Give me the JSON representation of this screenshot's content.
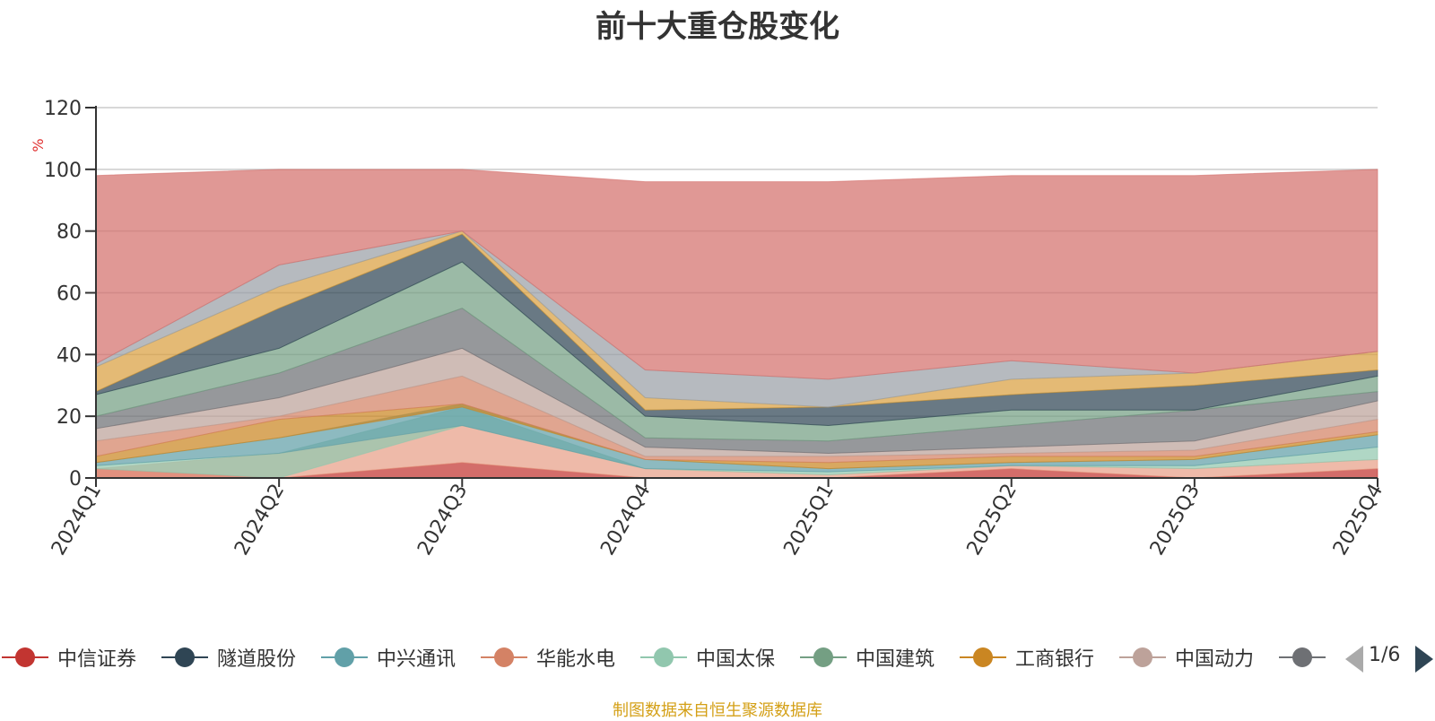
{
  "chart_data": {
    "type": "area",
    "title": "前十大重仓股变化",
    "ylabel": "%",
    "ylim": [
      0,
      120
    ],
    "yticks": [
      0,
      20,
      40,
      60,
      80,
      100,
      120
    ],
    "categories": [
      "2024Q1",
      "2024Q2",
      "2024Q3",
      "2024Q4",
      "2025Q1",
      "2025Q2",
      "2025Q3",
      "2025Q4"
    ],
    "grid": true,
    "legend_position": "bottom",
    "layers": [
      {
        "upper": [
          3,
          0,
          5,
          0,
          0,
          3,
          0,
          3
        ],
        "lower": [
          0,
          0,
          0,
          0,
          0,
          0,
          0,
          0
        ],
        "color": "#c23531"
      },
      {
        "upper": [
          3,
          8,
          17,
          3,
          1,
          4,
          3,
          6
        ],
        "lower": [
          0,
          0,
          5,
          0,
          0,
          3,
          0,
          3
        ],
        "color": "#e8a088"
      },
      {
        "upper": [
          4,
          8,
          23,
          3,
          2,
          4,
          4,
          10
        ],
        "lower": [
          3,
          0,
          17,
          3,
          1,
          4,
          3,
          6
        ],
        "color": "#91c7ae"
      },
      {
        "upper": [
          5,
          13,
          24,
          6,
          3,
          5,
          6,
          14
        ],
        "lower": [
          4,
          8,
          17,
          3,
          2,
          4,
          4,
          10
        ],
        "color": "#61a0a8"
      },
      {
        "upper": [
          7,
          19,
          24,
          6,
          5,
          7,
          7,
          15
        ],
        "lower": [
          5,
          13,
          23,
          6,
          3,
          5,
          6,
          14
        ],
        "color": "#ca8622"
      },
      {
        "upper": [
          12,
          20,
          33,
          7,
          7,
          8,
          9,
          19
        ],
        "lower": [
          7,
          19,
          24,
          6,
          5,
          7,
          7,
          15
        ],
        "color": "#d48265"
      },
      {
        "upper": [
          16,
          26,
          42,
          10,
          8,
          10,
          12,
          25
        ],
        "lower": [
          12,
          20,
          33,
          7,
          7,
          8,
          9,
          19
        ],
        "color": "#bda29a"
      },
      {
        "upper": [
          20,
          34,
          55,
          13,
          12,
          17,
          22,
          28
        ],
        "lower": [
          16,
          26,
          42,
          10,
          8,
          10,
          12,
          25
        ],
        "color": "#6e7074"
      },
      {
        "upper": [
          27,
          42,
          70,
          20,
          17,
          22,
          22,
          33
        ],
        "lower": [
          20,
          34,
          55,
          13,
          12,
          17,
          22,
          28
        ],
        "color": "#749f83"
      },
      {
        "upper": [
          28,
          55,
          79,
          22,
          23,
          27,
          30,
          35
        ],
        "lower": [
          27,
          42,
          70,
          20,
          17,
          22,
          22,
          33
        ],
        "color": "#2f4554"
      },
      {
        "upper": [
          36,
          62,
          80,
          26,
          23,
          32,
          34,
          41
        ],
        "lower": [
          28,
          55,
          79,
          22,
          23,
          27,
          30,
          35
        ],
        "color": "#d9a040"
      },
      {
        "upper": [
          37,
          69,
          80,
          35,
          32,
          38,
          34,
          41
        ],
        "lower": [
          36,
          62,
          80,
          26,
          23,
          32,
          34,
          41
        ],
        "color": "#9aa0a6"
      },
      {
        "upper": [
          98,
          100,
          100,
          96,
          96,
          98,
          98,
          100
        ],
        "lower": [
          37,
          69,
          80,
          35,
          32,
          38,
          34,
          41
        ],
        "color": "#d4706c"
      }
    ]
  },
  "legend": {
    "items": [
      {
        "label": "中信证券",
        "color": "#c23531"
      },
      {
        "label": "隧道股份",
        "color": "#2f4554"
      },
      {
        "label": "中兴通讯",
        "color": "#61a0a8"
      },
      {
        "label": "华能水电",
        "color": "#d48265"
      },
      {
        "label": "中国太保",
        "color": "#91c7ae"
      },
      {
        "label": "中国建筑",
        "color": "#749f83"
      },
      {
        "label": "工商银行",
        "color": "#ca8622"
      },
      {
        "label": "中国动力",
        "color": "#bda29a"
      },
      {
        "label": "",
        "color": "#6e7074"
      }
    ],
    "page": "1/6"
  },
  "source": "制图数据来自恒生聚源数据库"
}
